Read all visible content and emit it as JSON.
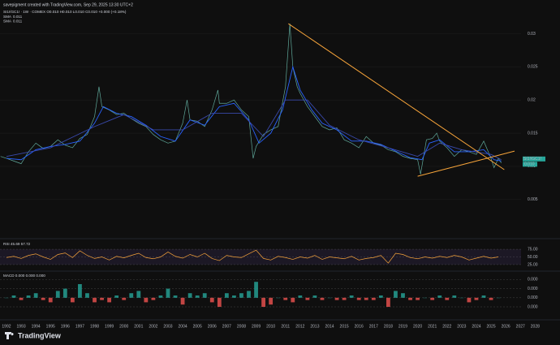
{
  "chart_data": [
    {
      "type": "line",
      "title": "savepigment created with TradingView.com, Sep 29, 2025 13:30 UTC+2",
      "subtitle": "SI1!/GC1! · 1W · COMEX  O0.010 H0.010 L0.010 C0.010 +0.000 (+0.18%)",
      "branding": "TradingView",
      "symbol_label": "SI1!/GC1!",
      "last_label": "0.010",
      "xlim": [
        1991.56,
        2028.7
      ],
      "ylim": [
        -0.0009,
        0.0314
      ],
      "yticks": [
        0.005,
        0.01,
        0.015,
        0.02,
        0.025,
        0.03
      ],
      "grid": true,
      "series": [
        {
          "name": "SI1!/GC1!",
          "color": "#5fa89a",
          "x": [
            1991.6,
            1992,
            1992.5,
            1993,
            1993.5,
            1994,
            1994.5,
            1995,
            1995.5,
            1996,
            1996.5,
            1997,
            1997.5,
            1998,
            1998.3,
            1998.5,
            1999,
            1999.5,
            2000,
            2000.5,
            2001,
            2001.5,
            2002,
            2002.5,
            2003,
            2003.5,
            2004,
            2004.3,
            2004.5,
            2005,
            2005.5,
            2006,
            2006.4,
            2006.5,
            2007,
            2007.5,
            2008,
            2008.5,
            2008.8,
            2009,
            2009.5,
            2010,
            2010.5,
            2011,
            2011.3,
            2011.5,
            2011.8,
            2012,
            2012.5,
            2013,
            2013.5,
            2014,
            2014.5,
            2015,
            2015.5,
            2016,
            2016.5,
            2017,
            2017.5,
            2018,
            2018.5,
            2019,
            2019.5,
            2020,
            2020.2,
            2020.6,
            2021,
            2021.3,
            2021.5,
            2022,
            2022.5,
            2023,
            2023.5,
            2024,
            2024.5,
            2025,
            2025.2,
            2025.5,
            2025.7
          ],
          "values": [
            0.0115,
            0.0112,
            0.0108,
            0.0104,
            0.0122,
            0.0135,
            0.0127,
            0.013,
            0.014,
            0.0132,
            0.0128,
            0.0142,
            0.0148,
            0.0175,
            0.022,
            0.019,
            0.0185,
            0.0178,
            0.018,
            0.0172,
            0.0165,
            0.016,
            0.0148,
            0.014,
            0.0135,
            0.0138,
            0.0165,
            0.02,
            0.017,
            0.0168,
            0.016,
            0.0185,
            0.0215,
            0.0195,
            0.0195,
            0.02,
            0.0185,
            0.0175,
            0.0112,
            0.013,
            0.0148,
            0.0155,
            0.016,
            0.022,
            0.0315,
            0.025,
            0.022,
            0.021,
            0.019,
            0.0175,
            0.016,
            0.0155,
            0.0158,
            0.014,
            0.0135,
            0.0128,
            0.0145,
            0.0135,
            0.0132,
            0.0125,
            0.0122,
            0.0115,
            0.0112,
            0.011,
            0.0088,
            0.014,
            0.0142,
            0.015,
            0.0138,
            0.0128,
            0.0115,
            0.0125,
            0.0122,
            0.0118,
            0.0138,
            0.0112,
            0.0098,
            0.0112,
            0.0105
          ]
        },
        {
          "name": "SMA",
          "value_label": "0.011",
          "color": "#2962ff",
          "x": [
            1992,
            1993,
            1994,
            1995,
            1996,
            1997,
            1998,
            1998.6,
            1999.5,
            2000.5,
            2001.5,
            2002.5,
            2003.5,
            2004.5,
            2005.5,
            2006.5,
            2007.5,
            2008.5,
            2009.2,
            2010,
            2010.8,
            2011.5,
            2012,
            2012.8,
            2013.5,
            2014.5,
            2015.5,
            2016.5,
            2017.5,
            2018.5,
            2019.5,
            2020.3,
            2020.8,
            2021.5,
            2022.5,
            2023.5,
            2024.5,
            2025.2,
            2025.7
          ],
          "values": [
            0.0112,
            0.011,
            0.0125,
            0.013,
            0.0133,
            0.0138,
            0.0165,
            0.019,
            0.018,
            0.0175,
            0.0162,
            0.0145,
            0.0138,
            0.017,
            0.0162,
            0.019,
            0.0195,
            0.017,
            0.0135,
            0.015,
            0.0185,
            0.025,
            0.0215,
            0.0185,
            0.0165,
            0.0155,
            0.0138,
            0.0138,
            0.0133,
            0.0123,
            0.0113,
            0.011,
            0.0135,
            0.014,
            0.0122,
            0.0122,
            0.0125,
            0.011,
            0.0108
          ]
        },
        {
          "name": "SMA",
          "value_label": "0.011",
          "color": "#3949ab",
          "x": [
            1992,
            1995,
            1998,
            2000,
            2002,
            2004,
            2006,
            2008,
            2009.5,
            2011,
            2012.5,
            2014,
            2016,
            2018,
            2020,
            2021.5,
            2023,
            2025,
            2025.7
          ],
          "values": [
            0.0115,
            0.0128,
            0.016,
            0.0178,
            0.0155,
            0.0155,
            0.018,
            0.018,
            0.0145,
            0.02,
            0.02,
            0.0162,
            0.014,
            0.0128,
            0.0115,
            0.0135,
            0.0125,
            0.0118,
            0.011
          ]
        }
      ],
      "trendlines": [
        {
          "color": "#f7a43a",
          "x": [
            2011.2,
            2025.9
          ],
          "values": [
            0.0315,
            0.0095
          ]
        },
        {
          "color": "#f7a43a",
          "x": [
            2020,
            2026.6
          ],
          "values": [
            0.0085,
            0.0123
          ]
        }
      ]
    },
    {
      "type": "line",
      "title": "RSI 45.69 57.72",
      "xlim": [
        1991.56,
        2028.7
      ],
      "ylim": [
        9,
        99
      ],
      "yticks": [
        {
          "value": 75,
          "label": "75.00"
        },
        {
          "value": 50,
          "label": "50.00"
        },
        {
          "value": 25,
          "label": "25.00"
        }
      ],
      "series": [
        {
          "color": "#f7a43a",
          "x": [
            1992,
            1992.5,
            1993,
            1993.5,
            1994,
            1994.5,
            1995,
            1995.5,
            1996,
            1996.5,
            1997,
            1997.5,
            1998,
            1998.5,
            1999,
            1999.5,
            2000,
            2000.5,
            2001,
            2001.5,
            2002,
            2002.5,
            2003,
            2003.5,
            2004,
            2004.5,
            2005,
            2005.5,
            2006,
            2006.5,
            2007,
            2007.5,
            2008,
            2008.5,
            2009,
            2009.5,
            2010,
            2010.5,
            2011,
            2011.5,
            2012,
            2012.5,
            2013,
            2013.5,
            2014,
            2014.5,
            2015,
            2015.5,
            2016,
            2016.5,
            2017,
            2017.5,
            2018,
            2018.5,
            2019,
            2019.5,
            2020,
            2020.5,
            2021,
            2021.5,
            2022,
            2022.5,
            2023,
            2023.5,
            2024,
            2024.5,
            2025,
            2025.5
          ],
          "values": [
            48,
            52,
            45,
            55,
            60,
            50,
            42,
            58,
            63,
            48,
            70,
            55,
            45,
            50,
            40,
            52,
            47,
            55,
            62,
            48,
            44,
            50,
            66,
            52,
            46,
            58,
            50,
            62,
            45,
            38,
            55,
            50,
            48,
            60,
            72,
            45,
            40,
            52,
            48,
            42,
            50,
            46,
            55,
            42,
            50,
            47,
            44,
            52,
            40,
            45,
            48,
            55,
            30,
            62,
            58,
            48,
            44,
            50,
            46,
            52,
            48,
            55,
            50,
            40,
            46,
            52,
            46,
            50
          ]
        }
      ]
    },
    {
      "type": "bar",
      "title": "MACD 0.000 0.000 0.000",
      "xlim": [
        1991.56,
        2028.7
      ],
      "ylim": [
        -0.0009,
        0.0011
      ],
      "yticks": [
        {
          "value": 0.0008,
          "label": "0.000"
        },
        {
          "value": 0.0004,
          "label": "0.000"
        },
        {
          "value": 0,
          "label": "0.000"
        },
        {
          "value": -0.0004,
          "label": "0.000"
        }
      ],
      "colors": [
        "#26a69a",
        "#ef5350"
      ],
      "x": [
        1992,
        1992.5,
        1993,
        1993.5,
        1994,
        1994.5,
        1995,
        1995.5,
        1996,
        1996.5,
        1997,
        1997.5,
        1998,
        1998.5,
        1999,
        1999.5,
        2000,
        2000.5,
        2001,
        2001.5,
        2002,
        2002.5,
        2003,
        2003.5,
        2004,
        2004.5,
        2005,
        2005.5,
        2006,
        2006.5,
        2007,
        2007.5,
        2008,
        2008.5,
        2009,
        2009.5,
        2010,
        2010.5,
        2011,
        2011.5,
        2012,
        2012.5,
        2013,
        2013.5,
        2014,
        2014.5,
        2015,
        2015.5,
        2016,
        2016.5,
        2017,
        2017.5,
        2018,
        2018.5,
        2019,
        2019.5,
        2020,
        2020.5,
        2021,
        2021.5,
        2022,
        2022.5,
        2023,
        2023.5,
        2024,
        2024.5,
        2025,
        2025.5
      ],
      "values": [
        0,
        0.0001,
        -0.0001,
        0.0001,
        0.0002,
        -0.0001,
        -0.0002,
        0.0003,
        0.0004,
        -0.0002,
        0.0006,
        0.0002,
        -0.0002,
        -0.0001,
        -0.0002,
        0.0001,
        -0.0001,
        0.0002,
        0.0003,
        -0.0002,
        -0.0001,
        0.0001,
        0.0004,
        0.0001,
        -0.0003,
        0.0002,
        0.0001,
        0.0002,
        -0.0002,
        -0.0004,
        0.0002,
        0.0001,
        0.0002,
        0.0003,
        0.0007,
        -0.0004,
        -0.0003,
        0,
        -0.0001,
        -0.0002,
        0.0001,
        -0.0001,
        0.0001,
        -0.0001,
        0,
        -0.0001,
        -0.0001,
        0.0001,
        -0.0001,
        -0.0001,
        -0.0001,
        0.0001,
        -0.0004,
        0.0003,
        0.0002,
        -0.0001,
        -0.0001,
        0,
        -0.0001,
        0.0001,
        -0.0001,
        0.0001,
        0,
        -0.0002,
        -0.0001,
        0.0001,
        -0.0001,
        0
      ],
      "xticks": [
        1992,
        1993,
        1994,
        1995,
        1996,
        1997,
        1998,
        1999,
        2000,
        2001,
        2002,
        2003,
        2004,
        2005,
        2006,
        2007,
        2008,
        2009,
        2010,
        2011,
        2012,
        2013,
        2014,
        2015,
        2016,
        2017,
        2018,
        2019,
        2020,
        2021,
        2022,
        2023,
        2024,
        2025,
        2026,
        2027,
        2028
      ]
    }
  ]
}
